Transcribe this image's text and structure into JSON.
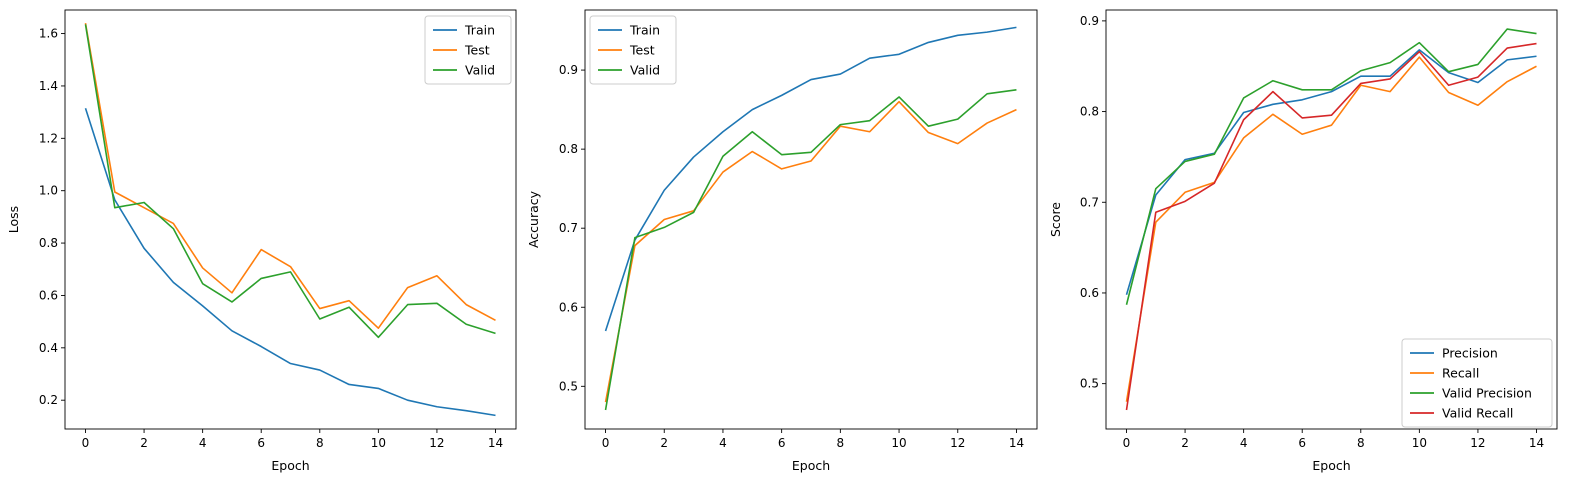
{
  "chart_data": [
    {
      "type": "line",
      "title": "",
      "xlabel": "Epoch",
      "ylabel": "Loss",
      "xlim": [
        -0.7,
        14.7
      ],
      "ylim": [
        0.09,
        1.69
      ],
      "xticks": [
        0,
        2,
        4,
        6,
        8,
        10,
        12,
        14
      ],
      "yticks": [
        0.2,
        0.4,
        0.6,
        0.8,
        1.0,
        1.2,
        1.4,
        1.6
      ],
      "ytick_labels": [
        "0.2",
        "0.4",
        "0.6",
        "0.8",
        "1.0",
        "1.2",
        "1.4",
        "1.6"
      ],
      "legend_position": "top-right",
      "grid": false,
      "x": [
        0,
        1,
        2,
        3,
        4,
        5,
        6,
        7,
        8,
        9,
        10,
        11,
        12,
        13,
        14
      ],
      "series": [
        {
          "name": "Train",
          "color": "#1f77b4",
          "values": [
            1.315,
            0.965,
            0.78,
            0.65,
            0.56,
            0.465,
            0.405,
            0.34,
            0.315,
            0.26,
            0.245,
            0.2,
            0.175,
            0.16,
            0.142
          ]
        },
        {
          "name": "Test",
          "color": "#ff7f0e",
          "values": [
            1.64,
            0.995,
            0.935,
            0.875,
            0.705,
            0.61,
            0.775,
            0.71,
            0.55,
            0.58,
            0.475,
            0.63,
            0.675,
            0.565,
            0.505
          ]
        },
        {
          "name": "Valid",
          "color": "#2ca02c",
          "values": [
            1.635,
            0.935,
            0.955,
            0.855,
            0.645,
            0.575,
            0.665,
            0.69,
            0.51,
            0.555,
            0.44,
            0.565,
            0.57,
            0.49,
            0.455
          ]
        }
      ]
    },
    {
      "type": "line",
      "title": "",
      "xlabel": "Epoch",
      "ylabel": "Accuracy",
      "xlim": [
        -0.7,
        14.7
      ],
      "ylim": [
        0.446,
        0.976
      ],
      "xticks": [
        0,
        2,
        4,
        6,
        8,
        10,
        12,
        14
      ],
      "yticks": [
        0.5,
        0.6,
        0.7,
        0.8,
        0.9
      ],
      "ytick_labels": [
        "0.5",
        "0.6",
        "0.7",
        "0.8",
        "0.9"
      ],
      "legend_position": "top-left",
      "grid": false,
      "x": [
        0,
        1,
        2,
        3,
        4,
        5,
        6,
        7,
        8,
        9,
        10,
        11,
        12,
        13,
        14
      ],
      "series": [
        {
          "name": "Train",
          "color": "#1f77b4",
          "values": [
            0.57,
            0.685,
            0.748,
            0.79,
            0.822,
            0.85,
            0.868,
            0.888,
            0.895,
            0.915,
            0.92,
            0.935,
            0.944,
            0.948,
            0.954
          ]
        },
        {
          "name": "Test",
          "color": "#ff7f0e",
          "values": [
            0.48,
            0.678,
            0.711,
            0.722,
            0.771,
            0.797,
            0.775,
            0.785,
            0.829,
            0.822,
            0.86,
            0.821,
            0.807,
            0.833,
            0.85
          ]
        },
        {
          "name": "Valid",
          "color": "#2ca02c",
          "values": [
            0.47,
            0.688,
            0.701,
            0.72,
            0.791,
            0.822,
            0.793,
            0.796,
            0.831,
            0.836,
            0.866,
            0.829,
            0.838,
            0.87,
            0.875
          ]
        }
      ]
    },
    {
      "type": "line",
      "title": "",
      "xlabel": "Epoch",
      "ylabel": "Score",
      "xlim": [
        -0.7,
        14.7
      ],
      "ylim": [
        0.45,
        0.912
      ],
      "xticks": [
        0,
        2,
        4,
        6,
        8,
        10,
        12,
        14
      ],
      "yticks": [
        0.5,
        0.6,
        0.7,
        0.8,
        0.9
      ],
      "ytick_labels": [
        "0.5",
        "0.6",
        "0.7",
        "0.8",
        "0.9"
      ],
      "legend_position": "bottom-right",
      "grid": false,
      "x": [
        0,
        1,
        2,
        3,
        4,
        5,
        6,
        7,
        8,
        9,
        10,
        11,
        12,
        13,
        14
      ],
      "series": [
        {
          "name": "Precision",
          "color": "#1f77b4",
          "values": [
            0.598,
            0.708,
            0.747,
            0.754,
            0.799,
            0.808,
            0.813,
            0.822,
            0.839,
            0.839,
            0.868,
            0.843,
            0.832,
            0.857,
            0.861
          ]
        },
        {
          "name": "Recall",
          "color": "#ff7f0e",
          "values": [
            0.48,
            0.678,
            0.711,
            0.722,
            0.771,
            0.797,
            0.775,
            0.785,
            0.829,
            0.822,
            0.86,
            0.821,
            0.807,
            0.833,
            0.85
          ]
        },
        {
          "name": "Valid Precision",
          "color": "#2ca02c",
          "values": [
            0.587,
            0.715,
            0.745,
            0.753,
            0.815,
            0.834,
            0.824,
            0.824,
            0.845,
            0.854,
            0.876,
            0.844,
            0.852,
            0.891,
            0.886
          ]
        },
        {
          "name": "Valid Recall",
          "color": "#d62728",
          "values": [
            0.471,
            0.689,
            0.701,
            0.721,
            0.791,
            0.822,
            0.793,
            0.796,
            0.831,
            0.836,
            0.866,
            0.829,
            0.838,
            0.87,
            0.875
          ]
        }
      ]
    }
  ]
}
